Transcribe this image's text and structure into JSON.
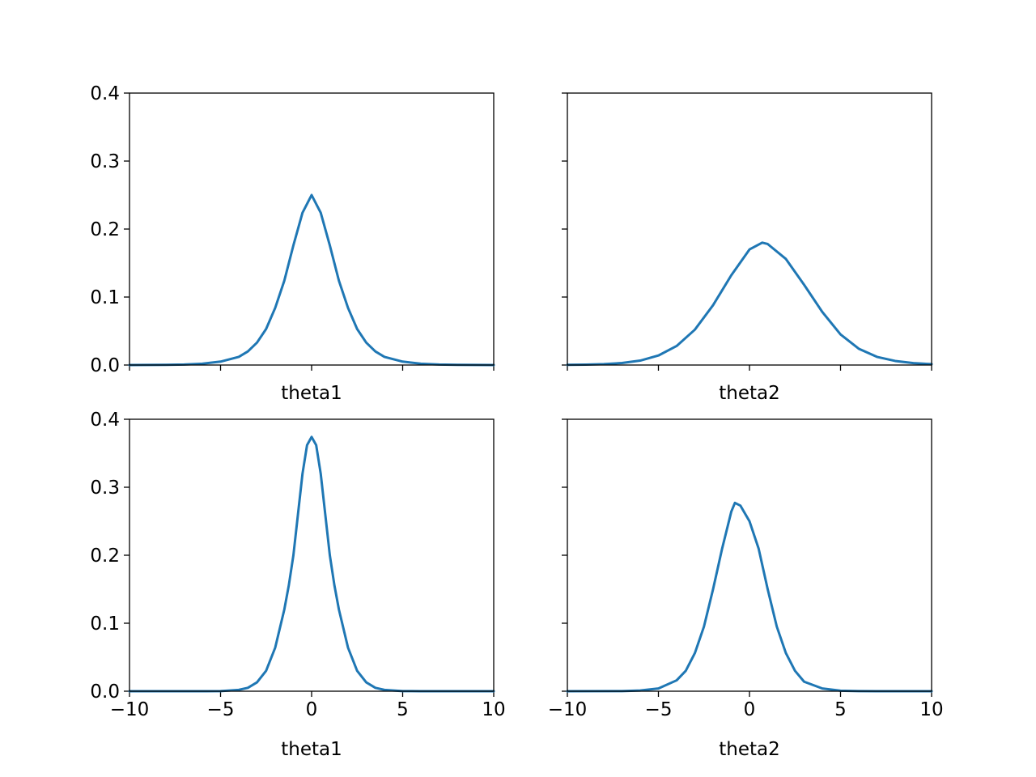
{
  "chart_data": [
    {
      "type": "line",
      "xlabel": "theta1",
      "xlim": [
        -10,
        10
      ],
      "ylim": [
        0,
        0.4
      ],
      "xticks": [
        -10,
        -5,
        0,
        5,
        10
      ],
      "yticks": [
        0.0,
        0.1,
        0.2,
        0.3,
        0.4
      ],
      "xtick_labels_visible": false,
      "ytick_labels_visible": true,
      "color": "#1f77b4",
      "series": [
        {
          "x": [
            -10,
            -9,
            -8,
            -7,
            -6,
            -5,
            -4,
            -3.5,
            -3,
            -2.5,
            -2,
            -1.5,
            -1,
            -0.5,
            0,
            0.5,
            1,
            1.5,
            2,
            2.5,
            3,
            3.5,
            4,
            5,
            6,
            7,
            8,
            9,
            10
          ],
          "y": [
            0.0,
            0.0001,
            0.0003,
            0.0008,
            0.002,
            0.005,
            0.012,
            0.02,
            0.033,
            0.053,
            0.084,
            0.124,
            0.176,
            0.224,
            0.25,
            0.224,
            0.176,
            0.124,
            0.084,
            0.053,
            0.033,
            0.02,
            0.012,
            0.005,
            0.002,
            0.0008,
            0.0003,
            0.0001,
            0.0
          ]
        }
      ]
    },
    {
      "type": "line",
      "xlabel": "theta2",
      "xlim": [
        -10,
        10
      ],
      "ylim": [
        0,
        0.4
      ],
      "xticks": [
        -10,
        -5,
        0,
        5,
        10
      ],
      "yticks": [
        0.0,
        0.1,
        0.2,
        0.3,
        0.4
      ],
      "xtick_labels_visible": false,
      "ytick_labels_visible": false,
      "color": "#1f77b4",
      "series": [
        {
          "x": [
            -10,
            -9,
            -8,
            -7,
            -6,
            -5,
            -4,
            -3,
            -2,
            -1,
            0,
            0.7,
            1,
            2,
            3,
            4,
            5,
            6,
            7,
            8,
            9,
            10
          ],
          "y": [
            0.0003,
            0.0006,
            0.0013,
            0.003,
            0.0065,
            0.014,
            0.028,
            0.052,
            0.088,
            0.132,
            0.17,
            0.18,
            0.178,
            0.156,
            0.118,
            0.078,
            0.045,
            0.024,
            0.012,
            0.006,
            0.0028,
            0.0013
          ]
        }
      ]
    },
    {
      "type": "line",
      "xlabel": "theta1",
      "xlim": [
        -10,
        10
      ],
      "ylim": [
        0,
        0.4
      ],
      "xticks": [
        -10,
        -5,
        0,
        5,
        10
      ],
      "yticks": [
        0.0,
        0.1,
        0.2,
        0.3,
        0.4
      ],
      "xtick_labels": [
        "−10",
        "−5",
        "0",
        "5",
        "10"
      ],
      "xtick_labels_visible": true,
      "ytick_labels_visible": true,
      "color": "#1f77b4",
      "series": [
        {
          "x": [
            -10,
            -6,
            -5,
            -4,
            -3.5,
            -3,
            -2.5,
            -2,
            -1.5,
            -1.25,
            -1,
            -0.75,
            -0.5,
            -0.25,
            0,
            0.25,
            0.5,
            0.75,
            1,
            1.25,
            1.5,
            2,
            2.5,
            3,
            3.5,
            4,
            5,
            6,
            10
          ],
          "y": [
            0.0,
            0.0,
            0.0002,
            0.002,
            0.005,
            0.013,
            0.03,
            0.064,
            0.12,
            0.156,
            0.2,
            0.26,
            0.32,
            0.362,
            0.374,
            0.362,
            0.32,
            0.26,
            0.2,
            0.156,
            0.12,
            0.064,
            0.03,
            0.013,
            0.005,
            0.002,
            0.0002,
            0.0,
            0.0
          ]
        }
      ]
    },
    {
      "type": "line",
      "xlabel": "theta2",
      "xlim": [
        -10,
        10
      ],
      "ylim": [
        0,
        0.4
      ],
      "xticks": [
        -10,
        -5,
        0,
        5,
        10
      ],
      "yticks": [
        0.0,
        0.1,
        0.2,
        0.3,
        0.4
      ],
      "xtick_labels": [
        "−10",
        "−5",
        "0",
        "5",
        "10"
      ],
      "xtick_labels_visible": true,
      "ytick_labels_visible": false,
      "color": "#1f77b4",
      "series": [
        {
          "x": [
            -10,
            -7,
            -6,
            -5,
            -4,
            -3.5,
            -3,
            -2.5,
            -2,
            -1.5,
            -1,
            -0.8,
            -0.5,
            0,
            0.5,
            1,
            1.5,
            2,
            2.5,
            3,
            4,
            5,
            6,
            7,
            10
          ],
          "y": [
            0.0,
            0.0002,
            0.001,
            0.004,
            0.016,
            0.03,
            0.056,
            0.095,
            0.15,
            0.21,
            0.264,
            0.277,
            0.273,
            0.25,
            0.21,
            0.15,
            0.095,
            0.056,
            0.03,
            0.014,
            0.004,
            0.0008,
            0.0002,
            0.0,
            0.0
          ]
        }
      ]
    }
  ]
}
